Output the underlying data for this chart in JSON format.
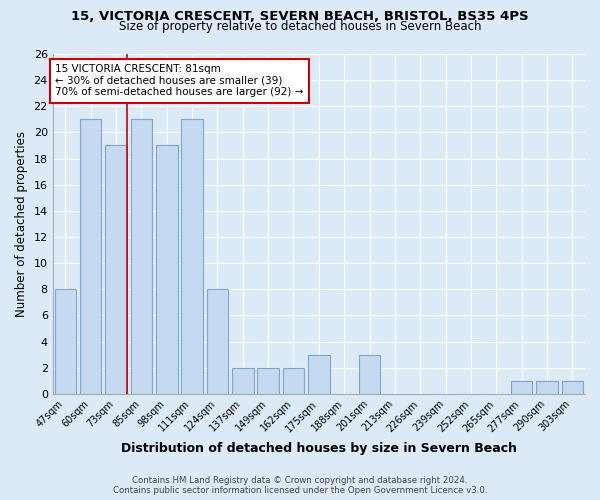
{
  "title_line1": "15, VICTORIA CRESCENT, SEVERN BEACH, BRISTOL, BS35 4PS",
  "title_line2": "Size of property relative to detached houses in Severn Beach",
  "xlabel": "Distribution of detached houses by size in Severn Beach",
  "ylabel": "Number of detached properties",
  "categories": [
    "47sqm",
    "60sqm",
    "73sqm",
    "85sqm",
    "98sqm",
    "111sqm",
    "124sqm",
    "137sqm",
    "149sqm",
    "162sqm",
    "175sqm",
    "188sqm",
    "201sqm",
    "213sqm",
    "226sqm",
    "239sqm",
    "252sqm",
    "265sqm",
    "277sqm",
    "290sqm",
    "303sqm"
  ],
  "values": [
    8,
    21,
    19,
    21,
    19,
    21,
    8,
    2,
    2,
    2,
    3,
    0,
    3,
    0,
    0,
    0,
    0,
    0,
    1,
    1,
    1
  ],
  "bar_color": "#c5d9f0",
  "bar_edge_color": "#7ba7d0",
  "background_color": "#dce9f7",
  "grid_color": "#ffffff",
  "red_line_index": 2,
  "annotation_text": "15 VICTORIA CRESCENT: 81sqm\n← 30% of detached houses are smaller (39)\n70% of semi-detached houses are larger (92) →",
  "annotation_box_color": "#ffffff",
  "annotation_box_edge": "#cc0000",
  "ylim": [
    0,
    26
  ],
  "yticks": [
    0,
    2,
    4,
    6,
    8,
    10,
    12,
    14,
    16,
    18,
    20,
    22,
    24,
    26
  ],
  "footer_line1": "Contains HM Land Registry data © Crown copyright and database right 2024.",
  "footer_line2": "Contains public sector information licensed under the Open Government Licence v3.0."
}
